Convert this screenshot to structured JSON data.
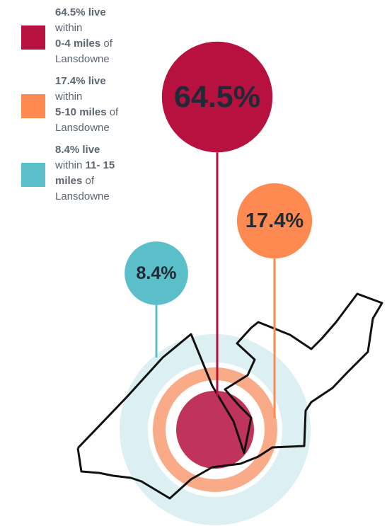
{
  "chart_data": {
    "type": "bubble",
    "values": [
      64.5,
      17.4,
      8.4
    ],
    "value_labels": [
      "64.5%",
      "17.4%",
      "8.4%"
    ],
    "colors": [
      "#b7123f",
      "#fe8a52",
      "#5bbfca"
    ],
    "legend": [
      [
        [
          {
            "text": "64.5% live",
            "bold": true
          }
        ],
        [
          {
            "text": "within",
            "bold": false
          }
        ],
        [
          {
            "text": "0-4 miles",
            "bold": true
          },
          {
            "text": " of",
            "bold": false
          }
        ],
        [
          {
            "text": "Lansdowne",
            "bold": false
          }
        ]
      ],
      [
        [
          {
            "text": "17.4% live",
            "bold": true
          }
        ],
        [
          {
            "text": "within",
            "bold": false
          }
        ],
        [
          {
            "text": "5-10 miles",
            "bold": true
          },
          {
            "text": " of",
            "bold": false
          }
        ],
        [
          {
            "text": "Lansdowne",
            "bold": false
          }
        ]
      ],
      [
        [
          {
            "text": "8.4% live",
            "bold": true
          }
        ],
        [
          {
            "text": "within ",
            "bold": false
          },
          {
            "text": "11- 15",
            "bold": true
          }
        ],
        [
          {
            "text": "miles",
            "bold": true
          },
          {
            "text": " of",
            "bold": false
          }
        ],
        [
          {
            "text": "Lansdowne",
            "bold": false
          }
        ]
      ]
    ]
  }
}
